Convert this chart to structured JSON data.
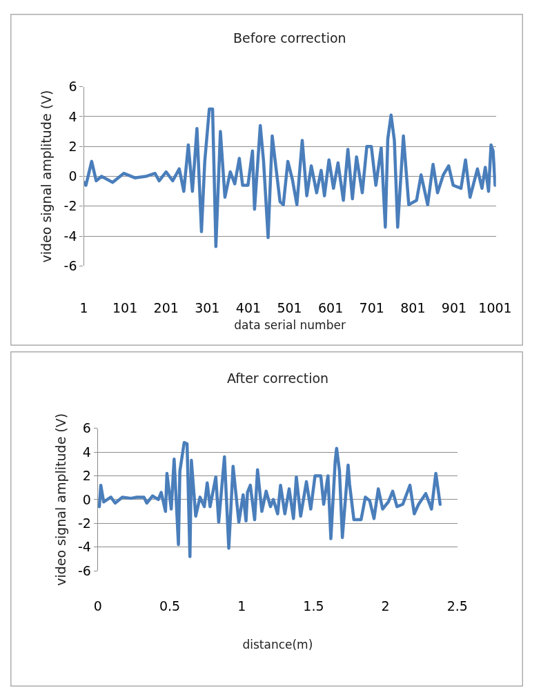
{
  "chart_data": [
    {
      "type": "line",
      "title": "Before correction",
      "xlabel": "data serial number",
      "ylabel": "video signal amplitude (V)",
      "xlim": [
        1,
        1003
      ],
      "xticks": [
        1,
        101,
        201,
        301,
        401,
        501,
        601,
        701,
        801,
        901,
        1001
      ],
      "ylim": [
        -6,
        6
      ],
      "yticks": [
        -6,
        -4,
        -2,
        0,
        2,
        4,
        6
      ],
      "grid": "y",
      "marker": "none",
      "line_style": "solid",
      "series": [
        {
          "color": "#4a7ebb",
          "x": [
            1,
            6,
            20,
            31,
            44,
            71,
            98,
            125,
            152,
            174,
            184,
            201,
            217,
            233,
            244,
            255,
            265,
            276,
            287,
            295,
            306,
            314,
            322,
            333,
            344,
            357,
            368,
            379,
            387,
            400,
            411,
            416,
            430,
            438,
            449,
            459,
            478,
            486,
            497,
            508,
            519,
            532,
            543,
            554,
            567,
            578,
            586,
            597,
            608,
            619,
            632,
            643,
            654,
            664,
            678,
            689,
            700,
            711,
            724,
            734,
            740,
            748,
            756,
            764,
            778,
            791,
            810,
            821,
            837,
            850,
            861,
            875,
            888,
            899,
            918,
            929,
            940,
            958,
            969,
            977,
            985,
            991,
            996,
            1001
          ],
          "values": [
            -0.4,
            -0.6,
            1.0,
            -0.3,
            0.0,
            -0.4,
            0.2,
            -0.1,
            0.0,
            0.2,
            -0.3,
            0.3,
            -0.3,
            0.5,
            -1.0,
            2.1,
            -1.0,
            3.2,
            -3.7,
            1.0,
            4.5,
            4.5,
            -4.7,
            3.0,
            -1.4,
            0.3,
            -0.5,
            1.2,
            -0.6,
            -0.6,
            1.7,
            -2.2,
            3.4,
            1.0,
            -4.1,
            2.7,
            -1.7,
            -1.9,
            1.0,
            -0.2,
            -1.9,
            2.4,
            -1.3,
            0.7,
            -1.1,
            0.4,
            -1.3,
            1.1,
            -0.8,
            0.9,
            -1.6,
            1.8,
            -1.5,
            1.3,
            -1.1,
            2.0,
            2.0,
            -0.6,
            1.9,
            -3.4,
            2.5,
            4.1,
            2.4,
            -3.4,
            2.7,
            -1.9,
            -1.6,
            0.1,
            -1.9,
            0.8,
            -1.1,
            0.1,
            0.7,
            -0.6,
            -0.8,
            1.1,
            -1.4,
            0.5,
            -0.8,
            0.6,
            -1.0,
            2.1,
            1.7,
            -0.6
          ]
        }
      ]
    },
    {
      "type": "line",
      "title": "After correction",
      "xlabel": "distance(m)",
      "ylabel": "video signal amplitude (V)",
      "xlim": [
        0,
        2.5
      ],
      "xticks": [
        0,
        0.5,
        1,
        1.5,
        2,
        2.5
      ],
      "ylim": [
        -6,
        6
      ],
      "yticks": [
        -6,
        -4,
        -2,
        0,
        2,
        4,
        6
      ],
      "grid": "y",
      "marker": "none",
      "line_style": "solid",
      "series": [
        {
          "color": "#4a7ebb",
          "x": [
            0.01,
            0.02,
            0.04,
            0.09,
            0.12,
            0.17,
            0.23,
            0.27,
            0.32,
            0.34,
            0.38,
            0.42,
            0.44,
            0.47,
            0.48,
            0.51,
            0.53,
            0.56,
            0.57,
            0.6,
            0.62,
            0.64,
            0.65,
            0.68,
            0.71,
            0.74,
            0.76,
            0.78,
            0.82,
            0.84,
            0.88,
            0.91,
            0.94,
            0.98,
            1.01,
            1.03,
            1.04,
            1.06,
            1.09,
            1.11,
            1.14,
            1.17,
            1.2,
            1.22,
            1.25,
            1.27,
            1.3,
            1.33,
            1.36,
            1.38,
            1.41,
            1.45,
            1.48,
            1.51,
            1.55,
            1.57,
            1.6,
            1.62,
            1.65,
            1.66,
            1.68,
            1.7,
            1.74,
            1.75,
            1.78,
            1.83,
            1.86,
            1.89,
            1.92,
            1.95,
            1.98,
            2.02,
            2.05,
            2.08,
            2.12,
            2.17,
            2.2,
            2.23,
            2.28,
            2.32,
            2.35,
            2.38
          ],
          "values": [
            -0.6,
            1.2,
            -0.2,
            0.2,
            -0.3,
            0.2,
            0.1,
            0.2,
            0.2,
            -0.3,
            0.3,
            0.0,
            0.6,
            -1.0,
            2.2,
            -0.8,
            3.4,
            -3.8,
            2.4,
            4.8,
            4.7,
            -4.8,
            3.3,
            -1.4,
            0.2,
            -0.6,
            1.4,
            -0.6,
            1.9,
            -1.9,
            3.6,
            -4.1,
            2.8,
            -1.9,
            0.4,
            -1.8,
            0.6,
            1.2,
            -1.7,
            2.5,
            -1.0,
            0.7,
            -0.6,
            0.0,
            -1.2,
            1.2,
            -1.2,
            0.9,
            -1.6,
            1.9,
            -1.4,
            1.5,
            -0.8,
            2.0,
            2.0,
            -0.4,
            2.0,
            -3.3,
            3.2,
            4.3,
            2.4,
            -3.2,
            2.9,
            1.3,
            -1.7,
            -1.7,
            0.2,
            -0.1,
            -1.6,
            0.9,
            -0.8,
            -0.2,
            0.7,
            -0.6,
            -0.4,
            1.2,
            -1.2,
            -0.4,
            0.5,
            -0.8,
            2.2,
            -0.4
          ]
        }
      ]
    }
  ]
}
